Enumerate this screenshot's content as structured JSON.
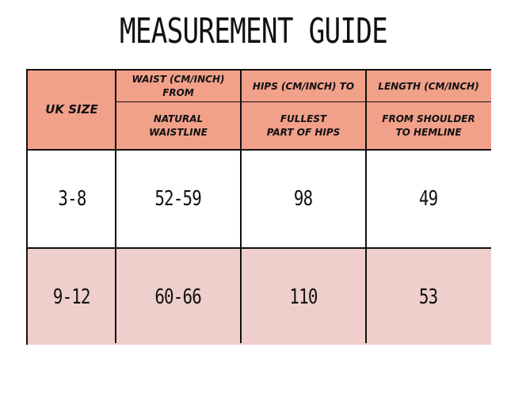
{
  "title": "MEASUREMENT GUIDE",
  "table": {
    "uk_size_header": "UK SIZE",
    "columns": [
      {
        "top": "WAIST (CM/INCH) FROM",
        "bottom_line1": "NATURAL",
        "bottom_line2": "WAISTLINE"
      },
      {
        "top": "HIPS (CM/INCH) TO",
        "bottom_line1": "FULLEST",
        "bottom_line2": "PART OF HIPS"
      },
      {
        "top": "LENGTH (CM/INCH)",
        "bottom_line1": "FROM SHOULDER",
        "bottom_line2": "TO HEMLINE"
      }
    ],
    "rows": [
      {
        "size": "3-8",
        "waist": "52-59",
        "hips": "98",
        "length": "49"
      },
      {
        "size": "9-12",
        "waist": "60-66",
        "hips": "110",
        "length": "53"
      }
    ]
  },
  "colors": {
    "header": "#f1a08a",
    "row_alt": "#efcfcb",
    "border": "#111111"
  }
}
